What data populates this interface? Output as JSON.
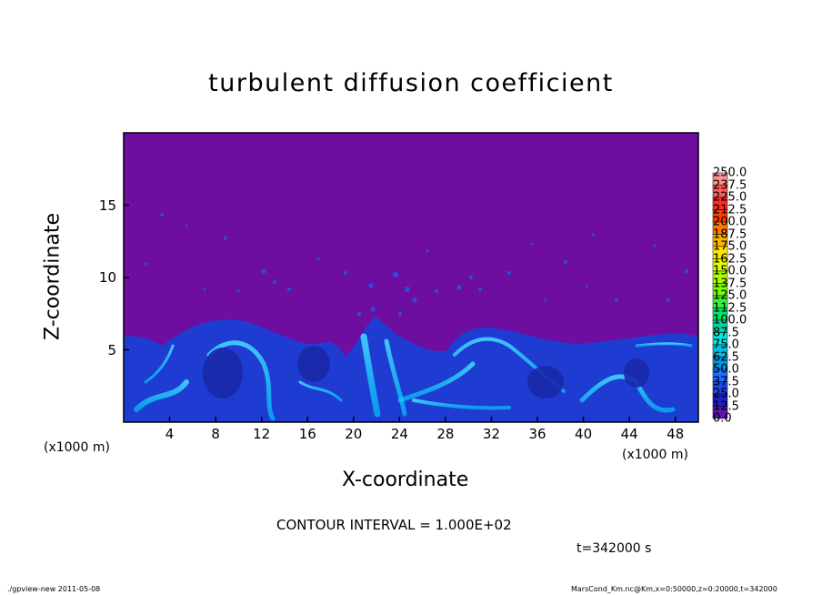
{
  "chart_data": {
    "type": "heatmap",
    "title": "turbulent diffusion coefficient",
    "xlabel": "X-coordinate",
    "ylabel": "Z-coordinate",
    "x_unit_left": "(x1000 m)",
    "x_unit_right": "(x1000 m)",
    "xlim": [
      0,
      50
    ],
    "ylim": [
      0,
      20
    ],
    "x_ticks": [
      "4",
      "8",
      "12",
      "16",
      "20",
      "24",
      "28",
      "32",
      "36",
      "40",
      "44",
      "48"
    ],
    "y_ticks": [
      "5",
      "10",
      "15"
    ],
    "colorbar": {
      "levels": [
        "250.0",
        "237.5",
        "225.0",
        "212.5",
        "200.0",
        "187.5",
        "175.0",
        "162.5",
        "150.0",
        "137.5",
        "125.0",
        "112.5",
        "100.0",
        "87.5",
        "75.0",
        "62.5",
        "50.0",
        "37.5",
        "25.0",
        "12.5",
        "0.0"
      ],
      "colors": [
        "#ff9090",
        "#ff5a5a",
        "#ff2a2a",
        "#ff3c00",
        "#ff7800",
        "#ffb400",
        "#ffe600",
        "#e6ff00",
        "#aaff00",
        "#78ff00",
        "#3cf03c",
        "#00e664",
        "#00d7a0",
        "#00e6e6",
        "#00bedc",
        "#0096e6",
        "#1e6eff",
        "#1e46e6",
        "#1e1ec8",
        "#5a14b4",
        "#6e0ea0"
      ]
    },
    "contour_interval": "CONTOUR INTERVAL = 1.000E+02",
    "time": "t=342000 s",
    "footer_left": "./gpview-new  2011-05-08",
    "footer_right": "MarsCond_Km.nc@Km,x=0:50000,z=0:20000,t=342000"
  }
}
